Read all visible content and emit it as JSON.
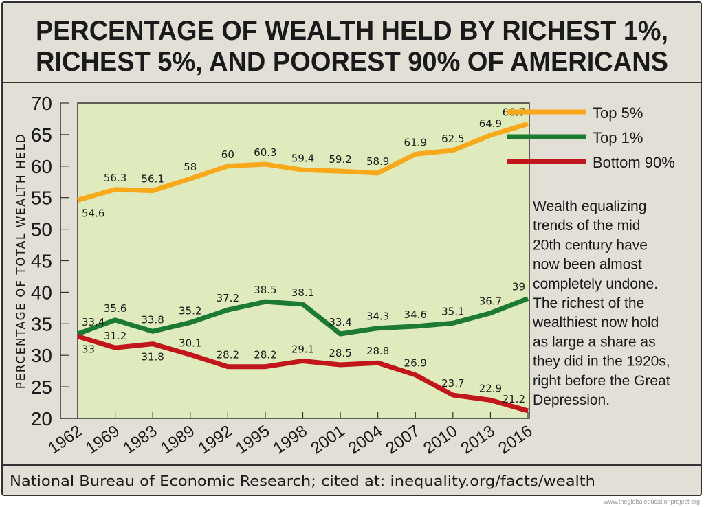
{
  "title": {
    "line1": "PERCENTAGE OF WEALTH HELD BY RICHEST 1%,",
    "line2": "RICHEST 5%, AND POOREST 90% OF AMERICANS"
  },
  "annotation": [
    "Wealth equalizing",
    "trends of the mid",
    "20th century have",
    "now been almost",
    "completely undone.",
    "The richest of the",
    "wealthiest now hold",
    "as large a share as",
    "they did in the 1920s,",
    "right before the Great",
    "Depression."
  ],
  "source": "National Bureau of Economic Research; cited at: inequality.org/facts/wealth",
  "watermark": "www.theglobaleducationproject.org",
  "colors": {
    "background": "#e2dfd7",
    "plot": "#dfeabd",
    "top5": "#f8a91b",
    "top1": "#1d7a33",
    "bottom90": "#c1161c"
  },
  "chart_data": {
    "type": "line",
    "title": "Percentage of Wealth Held by Richest 1%, Richest 5%, and Poorest 90% of Americans",
    "xlabel": "",
    "ylabel": "PERCENTAGE OF TOTAL WEALTH HELD",
    "ylim": [
      20,
      70
    ],
    "yticks": [
      "20",
      "25",
      "30",
      "35",
      "40",
      "45",
      "50",
      "55",
      "60",
      "65",
      "70"
    ],
    "categories": [
      "1962",
      "1969",
      "1983",
      "1989",
      "1992",
      "1995",
      "1998",
      "2001",
      "2004",
      "2007",
      "2010",
      "2013",
      "2016"
    ],
    "legend_position": "top-right",
    "series": [
      {
        "name": "Top 5%",
        "color": "#f8a91b",
        "values": [
          54.6,
          56.3,
          56.1,
          58,
          60,
          60.3,
          59.4,
          59.2,
          58.9,
          61.9,
          62.5,
          64.9,
          66.7
        ]
      },
      {
        "name": "Top 1%",
        "color": "#1d7a33",
        "values": [
          33.4,
          35.6,
          33.8,
          35.2,
          37.2,
          38.5,
          38.1,
          33.4,
          34.3,
          34.6,
          35.1,
          36.7,
          39
        ]
      },
      {
        "name": "Bottom 90%",
        "color": "#c1161c",
        "values": [
          33,
          31.2,
          31.8,
          30.1,
          28.2,
          28.2,
          29.1,
          28.5,
          28.8,
          26.9,
          23.7,
          22.9,
          21.2
        ]
      }
    ]
  }
}
